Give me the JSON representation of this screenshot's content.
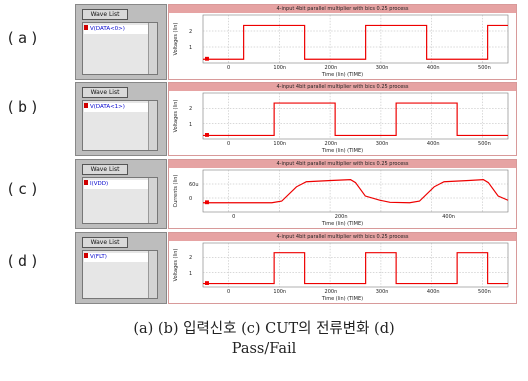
{
  "rows": [
    {
      "label": "(a)",
      "button": "Wave List",
      "signal": "V(DATA<0>)",
      "title": "4-input 4bit parallel multiplier with bics 0.25 process",
      "ylabel": "Voltages (lin)",
      "xlabel": "Time (lin) (TIME)",
      "xticks": [
        "0",
        "100n",
        "200n",
        "300n",
        "400n",
        "500n"
      ],
      "yticks": [
        "2",
        "1"
      ],
      "xrange": [
        -20,
        580
      ],
      "yrange": [
        0,
        3.2
      ],
      "wave": [
        [
          -20,
          0.25
        ],
        [
          50,
          0.25
        ],
        [
          50,
          0.25
        ],
        [
          60,
          0.25
        ],
        [
          60,
          2.5
        ],
        [
          180,
          2.5
        ],
        [
          180,
          0.25
        ],
        [
          300,
          0.25
        ],
        [
          300,
          2.5
        ],
        [
          420,
          2.5
        ],
        [
          420,
          0.25
        ],
        [
          540,
          0.25
        ],
        [
          540,
          2.5
        ],
        [
          580,
          2.5
        ]
      ]
    },
    {
      "label": "(b)",
      "button": "Wave List",
      "signal": "V(DATA<1>)",
      "title": "4-input 4bit parallel multiplier with bics 0.25 process",
      "ylabel": "Voltages (lin)",
      "xlabel": "Time (lin) (TIME)",
      "xticks": [
        "0",
        "100n",
        "200n",
        "300n",
        "400n",
        "500n"
      ],
      "yticks": [
        "2",
        "1"
      ],
      "xrange": [
        -20,
        580
      ],
      "yrange": [
        0,
        3.2
      ],
      "wave": [
        [
          -20,
          0.25
        ],
        [
          120,
          0.25
        ],
        [
          120,
          2.5
        ],
        [
          240,
          2.5
        ],
        [
          240,
          0.25
        ],
        [
          360,
          0.25
        ],
        [
          360,
          2.5
        ],
        [
          480,
          2.5
        ],
        [
          480,
          0.25
        ],
        [
          580,
          0.25
        ]
      ]
    },
    {
      "label": "(c)",
      "button": "Wave List",
      "signal": "I(VDD)",
      "title": "4-input 4bit parallel multiplier with bics 0.25 process",
      "ylabel": "Currents (lin)",
      "xlabel": "Time (lin) (TIME)",
      "xticks": [
        "0",
        "200n",
        "400n"
      ],
      "yticks": [
        "60u",
        "0"
      ],
      "xrange": [
        -60,
        560
      ],
      "yrange": [
        -20,
        80
      ],
      "wave": [
        [
          -60,
          2
        ],
        [
          80,
          2
        ],
        [
          100,
          6
        ],
        [
          130,
          40
        ],
        [
          150,
          52
        ],
        [
          200,
          55
        ],
        [
          240,
          57
        ],
        [
          250,
          50
        ],
        [
          270,
          18
        ],
        [
          300,
          8
        ],
        [
          320,
          3
        ],
        [
          360,
          2
        ],
        [
          380,
          6
        ],
        [
          410,
          40
        ],
        [
          430,
          52
        ],
        [
          480,
          55
        ],
        [
          510,
          57
        ],
        [
          520,
          50
        ],
        [
          540,
          18
        ],
        [
          560,
          8
        ]
      ]
    },
    {
      "label": "(d)",
      "button": "Wave List",
      "signal": "V(FLT)",
      "title": "4-input 4bit parallel multiplier with bics 0.25 process",
      "ylabel": "Voltages (lin)",
      "xlabel": "Time (lin) (TIME)",
      "xticks": [
        "0",
        "100n",
        "200n",
        "300n",
        "400n",
        "500n"
      ],
      "yticks": [
        "2",
        "1"
      ],
      "xrange": [
        -20,
        580
      ],
      "yrange": [
        0,
        3.2
      ],
      "wave": [
        [
          -20,
          0.25
        ],
        [
          120,
          0.25
        ],
        [
          120,
          2.5
        ],
        [
          180,
          2.5
        ],
        [
          180,
          0.25
        ],
        [
          300,
          0.25
        ],
        [
          300,
          2.5
        ],
        [
          360,
          2.5
        ],
        [
          360,
          0.25
        ],
        [
          480,
          0.25
        ],
        [
          480,
          2.5
        ],
        [
          540,
          2.5
        ],
        [
          540,
          0.25
        ],
        [
          580,
          0.25
        ]
      ]
    }
  ],
  "caption": {
    "line1": "(a) (b) 입력신호  (c) CUT의 전류변화  (d)",
    "line2": "Pass/Fail"
  },
  "colors": {
    "wave": "#ee0000",
    "grid": "#b0b0b0",
    "panel": "#bdbdbd",
    "title_bar": "#e6a3a3"
  }
}
